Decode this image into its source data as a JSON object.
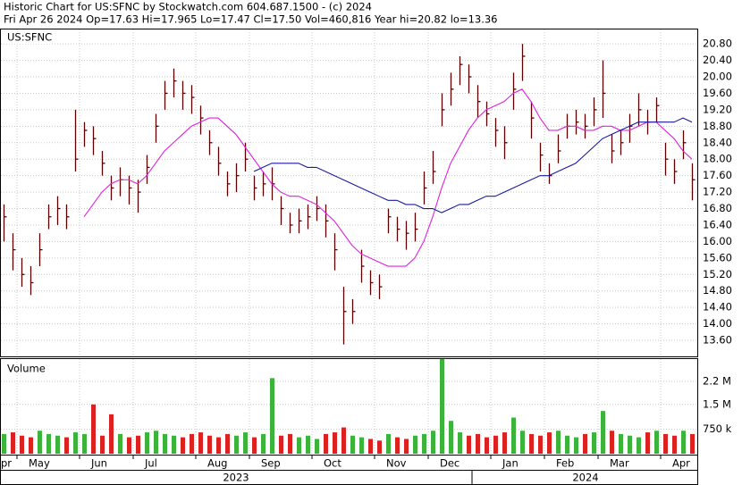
{
  "header": {
    "line1": "Historic Chart for US:SFNC by Stockwatch.com 604.687.1500 - (c) 2024",
    "line2": "Fri Apr 26 2024   Op=17.63   Hi=17.965   Lo=17.47   Cl=17.50   Vol=460,816   Year hi=20.82   lo=13.36"
  },
  "chart_data": [
    {
      "type": "ohlc",
      "symbol": "US:SFNC",
      "color": "#5a0000",
      "grid": true,
      "high": [
        16.9,
        16.2,
        15.6,
        15.4,
        16.2,
        16.9,
        17.1,
        16.9,
        19.2,
        18.9,
        18.8,
        18.2,
        17.6,
        17.8,
        17.6,
        17.5,
        18.1,
        19.1,
        19.9,
        20.2,
        19.9,
        19.8,
        19.3,
        18.7,
        18.3,
        17.7,
        17.9,
        18.4,
        17.6,
        17.7,
        17.8,
        17.1,
        16.7,
        16.8,
        16.9,
        17.1,
        16.9,
        16.2,
        14.9,
        14.6,
        15.8,
        15.3,
        15.2,
        16.8,
        16.6,
        16.5,
        16.7,
        17.7,
        18.2,
        19.6,
        20.1,
        20.5,
        20.3,
        19.8,
        19.4,
        19.0,
        18.8,
        20.1,
        20.8,
        19.4,
        18.4,
        17.9,
        18.6,
        19.1,
        19.2,
        19.1,
        19.5,
        20.4,
        18.6,
        18.7,
        19.1,
        19.6,
        19.2,
        19.5,
        18.4,
        18.0,
        18.7,
        17.9
      ],
      "low": [
        16.0,
        15.3,
        14.9,
        14.7,
        15.4,
        16.3,
        16.4,
        16.3,
        17.7,
        18.3,
        18.1,
        17.6,
        17.0,
        17.1,
        16.9,
        16.7,
        17.4,
        18.4,
        19.2,
        19.5,
        19.2,
        19.1,
        18.6,
        18.1,
        17.6,
        17.1,
        17.2,
        17.7,
        17.0,
        17.1,
        17.0,
        16.4,
        16.2,
        16.2,
        16.3,
        16.5,
        16.1,
        15.3,
        13.5,
        14.0,
        15.0,
        14.7,
        14.6,
        16.2,
        16.0,
        15.8,
        16.0,
        16.9,
        17.4,
        18.8,
        19.3,
        19.8,
        19.6,
        19.0,
        18.8,
        18.3,
        18.0,
        19.2,
        19.9,
        18.5,
        17.7,
        17.4,
        17.9,
        18.5,
        18.6,
        18.5,
        18.8,
        19.0,
        17.9,
        18.1,
        18.4,
        18.8,
        18.6,
        18.9,
        17.6,
        17.4,
        18.0,
        17.0
      ],
      "close": [
        16.6,
        15.8,
        15.2,
        15.0,
        15.8,
        16.6,
        16.8,
        16.6,
        18.0,
        18.7,
        18.5,
        17.9,
        17.3,
        17.5,
        17.3,
        17.2,
        17.8,
        18.8,
        19.6,
        19.9,
        19.6,
        19.5,
        19.0,
        18.4,
        17.9,
        17.4,
        17.6,
        18.0,
        17.3,
        17.4,
        17.4,
        16.8,
        16.4,
        16.5,
        16.6,
        16.8,
        16.5,
        15.8,
        14.3,
        14.3,
        15.4,
        15.0,
        14.9,
        16.6,
        16.3,
        16.2,
        16.3,
        17.3,
        17.7,
        19.2,
        19.7,
        20.3,
        20.0,
        19.4,
        19.1,
        18.7,
        18.4,
        19.7,
        20.5,
        19.0,
        18.1,
        17.6,
        18.2,
        18.8,
        18.9,
        18.8,
        19.2,
        19.6,
        18.2,
        18.4,
        18.8,
        19.2,
        18.9,
        19.3,
        18.0,
        17.7,
        18.4,
        17.5
      ],
      "lines": [
        {
          "color": "#e020e0",
          "values": [
            null,
            null,
            null,
            null,
            null,
            null,
            null,
            null,
            null,
            16.6,
            16.9,
            17.2,
            17.4,
            17.5,
            17.5,
            17.4,
            17.6,
            17.9,
            18.2,
            18.4,
            18.6,
            18.8,
            18.9,
            19.0,
            19.0,
            18.8,
            18.6,
            18.3,
            18.0,
            17.7,
            17.4,
            17.2,
            17.1,
            17.1,
            17.0,
            16.9,
            16.7,
            16.5,
            16.2,
            15.9,
            15.7,
            15.6,
            15.5,
            15.4,
            15.4,
            15.4,
            15.6,
            16.0,
            16.6,
            17.3,
            17.9,
            18.3,
            18.7,
            19.0,
            19.2,
            19.3,
            19.4,
            19.6,
            19.7,
            19.4,
            19.0,
            18.7,
            18.7,
            18.8,
            18.8,
            18.7,
            18.7,
            18.8,
            18.8,
            18.7,
            18.7,
            18.8,
            18.9,
            18.9,
            18.7,
            18.5,
            18.2,
            18.0
          ]
        },
        {
          "color": "#1a1aa0",
          "values": [
            null,
            null,
            null,
            null,
            null,
            null,
            null,
            null,
            null,
            null,
            null,
            null,
            null,
            null,
            null,
            null,
            null,
            null,
            null,
            null,
            null,
            null,
            null,
            null,
            null,
            null,
            null,
            null,
            17.7,
            17.8,
            17.9,
            17.9,
            17.9,
            17.9,
            17.8,
            17.8,
            17.7,
            17.6,
            17.5,
            17.4,
            17.3,
            17.2,
            17.1,
            17.0,
            17.0,
            16.9,
            16.9,
            16.8,
            16.8,
            16.7,
            16.8,
            16.9,
            16.9,
            17.0,
            17.1,
            17.1,
            17.2,
            17.3,
            17.4,
            17.5,
            17.6,
            17.6,
            17.7,
            17.8,
            17.9,
            18.1,
            18.3,
            18.5,
            18.6,
            18.7,
            18.8,
            18.9,
            18.9,
            18.9,
            18.9,
            18.9,
            19.0,
            18.9
          ]
        }
      ],
      "ylim": [
        13.21,
        21.15
      ],
      "yticks": [
        {
          "value": 13.6,
          "label": "13.60"
        },
        {
          "value": 14.0,
          "label": "14.00"
        },
        {
          "value": 14.4,
          "label": "14.40"
        },
        {
          "value": 14.8,
          "label": "14.80"
        },
        {
          "value": 15.2,
          "label": "15.20"
        },
        {
          "value": 15.6,
          "label": "15.60"
        },
        {
          "value": 16.0,
          "label": "16.00"
        },
        {
          "value": 16.4,
          "label": "16.40"
        },
        {
          "value": 16.8,
          "label": "16.80"
        },
        {
          "value": 17.2,
          "label": "17.20"
        },
        {
          "value": 17.6,
          "label": "17.60"
        },
        {
          "value": 18.0,
          "label": "18.00"
        },
        {
          "value": 18.4,
          "label": "18.40"
        },
        {
          "value": 18.8,
          "label": "18.80"
        },
        {
          "value": 19.2,
          "label": "19.20"
        },
        {
          "value": 19.6,
          "label": "19.60"
        },
        {
          "value": 20.0,
          "label": "20.00"
        },
        {
          "value": 20.4,
          "label": "20.40"
        },
        {
          "value": 20.8,
          "label": "20.80"
        }
      ]
    },
    {
      "type": "bar",
      "title": "Volume",
      "up_color": "#3cb43c",
      "down_color": "#dd2020",
      "grid": true,
      "categories": [
        "pr",
        null,
        "May",
        null,
        null,
        null,
        null,
        null,
        null,
        "Jun",
        null,
        null,
        null,
        null,
        null,
        "Jul",
        null,
        null,
        null,
        null,
        null,
        null,
        "Aug",
        null,
        null,
        null,
        null,
        null,
        "Sep",
        null,
        null,
        null,
        null,
        null,
        null,
        "Oct",
        null,
        null,
        null,
        null,
        null,
        null,
        "Nov",
        null,
        null,
        null,
        null,
        null,
        "Dec",
        null,
        null,
        null,
        null,
        null,
        null,
        "Jan",
        null,
        null,
        null,
        null,
        null,
        "Feb",
        null,
        null,
        null,
        null,
        null,
        "Mar",
        null,
        null,
        null,
        null,
        null,
        null,
        "Apr",
        null,
        null,
        null
      ],
      "values": [
        600000,
        650000,
        550000,
        500000,
        700000,
        600000,
        550000,
        500000,
        650000,
        600000,
        1500000,
        550000,
        1200000,
        600000,
        500000,
        550000,
        650000,
        700000,
        600000,
        550000,
        500000,
        600000,
        650000,
        550000,
        500000,
        600000,
        550000,
        650000,
        500000,
        600000,
        2300000,
        550000,
        600000,
        500000,
        550000,
        450000,
        600000,
        650000,
        800000,
        550000,
        500000,
        450000,
        400000,
        600000,
        500000,
        450000,
        550000,
        600000,
        700000,
        2880000,
        1000000,
        650000,
        550000,
        600000,
        500000,
        550000,
        650000,
        1100000,
        700000,
        600000,
        550000,
        650000,
        700000,
        550000,
        500000,
        600000,
        650000,
        1300000,
        700000,
        600000,
        550000,
        500000,
        650000,
        700000,
        600000,
        550000,
        700000,
        600000
      ],
      "ylim": [
        0,
        2880000
      ],
      "yticks": [
        {
          "value": 750000,
          "label": "750 k"
        },
        {
          "value": 1500000,
          "label": "1.5 M"
        },
        {
          "value": 2200000,
          "label": "2.2 M"
        }
      ],
      "years": [
        "2023",
        "2024"
      ]
    }
  ]
}
